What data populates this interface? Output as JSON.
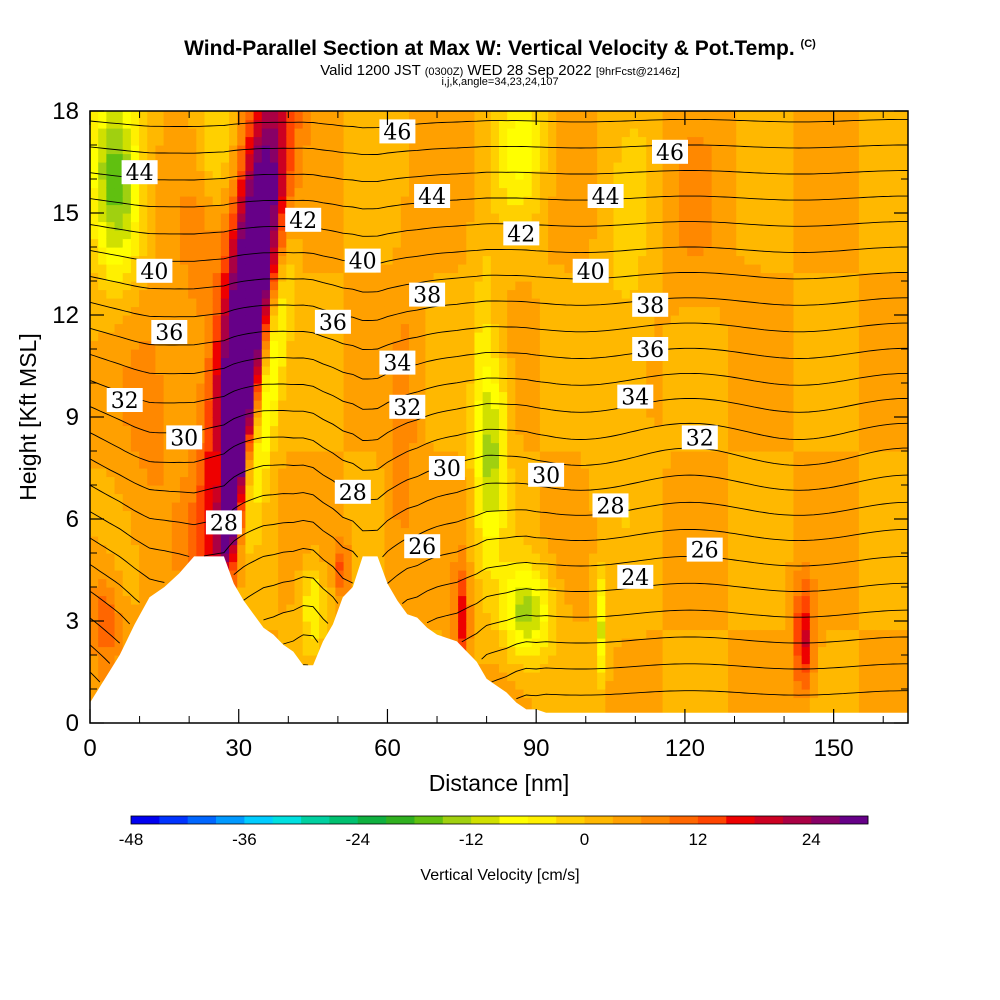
{
  "title": {
    "main": "Wind-Parallel Section at Max W: Vertical Velocity & Pot.Temp.",
    "copyright": "(C)",
    "valid": "Valid 1200 JST",
    "valid_z": "(0300Z)",
    "date": "WED 28 Sep 2022",
    "forecast": "[9hrFcst@2146z]",
    "ijk": "i,j,k,angle=34,23,24,107"
  },
  "chart_data": {
    "type": "heatmap",
    "xlabel": "Distance [nm]",
    "ylabel": "Height [Kft MSL]",
    "xlim": [
      0,
      165
    ],
    "ylim": [
      0,
      18
    ],
    "x_ticks": [
      "0",
      "30",
      "60",
      "90",
      "120",
      "150"
    ],
    "y_ticks": [
      "0",
      "3",
      "6",
      "9",
      "12",
      "15",
      "18"
    ],
    "colorbar": {
      "label": "Vertical Velocity [cm/s]",
      "ticks": [
        "-48",
        "-36",
        "-24",
        "-12",
        "0",
        "12",
        "24"
      ],
      "range": [
        -48,
        30
      ],
      "step": 3,
      "colors": [
        "#0000f0",
        "#0033ff",
        "#0066ff",
        "#0099ff",
        "#00ccff",
        "#00e0e0",
        "#00d0a0",
        "#00c070",
        "#10b040",
        "#30b020",
        "#60c010",
        "#a0d010",
        "#d0e000",
        "#ffff00",
        "#fff000",
        "#ffd000",
        "#ffb800",
        "#ffa000",
        "#ff8800",
        "#ff6600",
        "#ff4400",
        "#ee0000",
        "#cc0022",
        "#aa0044",
        "#880066",
        "#660088"
      ]
    },
    "theta_contour_labels": [
      {
        "value": "46",
        "x": 62,
        "y": 17.4
      },
      {
        "value": "46",
        "x": 117,
        "y": 16.8
      },
      {
        "value": "44",
        "x": 10,
        "y": 16.2
      },
      {
        "value": "44",
        "x": 69,
        "y": 15.5
      },
      {
        "value": "44",
        "x": 104,
        "y": 15.5
      },
      {
        "value": "42",
        "x": 43,
        "y": 14.8
      },
      {
        "value": "42",
        "x": 87,
        "y": 14.4
      },
      {
        "value": "40",
        "x": 13,
        "y": 13.3
      },
      {
        "value": "40",
        "x": 55,
        "y": 13.6
      },
      {
        "value": "40",
        "x": 101,
        "y": 13.3
      },
      {
        "value": "38",
        "x": 68,
        "y": 12.6
      },
      {
        "value": "38",
        "x": 113,
        "y": 12.3
      },
      {
        "value": "36",
        "x": 16,
        "y": 11.5
      },
      {
        "value": "36",
        "x": 49,
        "y": 11.8
      },
      {
        "value": "36",
        "x": 113,
        "y": 11.0
      },
      {
        "value": "34",
        "x": 62,
        "y": 10.6
      },
      {
        "value": "34",
        "x": 110,
        "y": 9.6
      },
      {
        "value": "32",
        "x": 7,
        "y": 9.5
      },
      {
        "value": "32",
        "x": 64,
        "y": 9.3
      },
      {
        "value": "32",
        "x": 123,
        "y": 8.4
      },
      {
        "value": "30",
        "x": 19,
        "y": 8.4
      },
      {
        "value": "30",
        "x": 72,
        "y": 7.5
      },
      {
        "value": "30",
        "x": 92,
        "y": 7.3
      },
      {
        "value": "28",
        "x": 53,
        "y": 6.8
      },
      {
        "value": "28",
        "x": 105,
        "y": 6.4
      },
      {
        "value": "28",
        "x": 27,
        "y": 5.9
      },
      {
        "value": "26",
        "x": 67,
        "y": 5.2
      },
      {
        "value": "26",
        "x": 124,
        "y": 5.1
      },
      {
        "value": "24",
        "x": 110,
        "y": 4.3
      }
    ],
    "theta_levels": [
      23,
      24,
      25,
      26,
      27,
      28,
      29,
      30,
      31,
      32,
      33,
      34,
      35,
      36,
      37,
      38,
      39,
      40,
      41,
      42,
      43,
      44,
      45,
      46,
      47
    ],
    "terrain_profile_kft": [
      [
        0,
        0.6
      ],
      [
        3,
        1.3
      ],
      [
        6,
        2.0
      ],
      [
        9,
        2.9
      ],
      [
        12,
        3.7
      ],
      [
        15,
        4.0
      ],
      [
        18,
        4.4
      ],
      [
        21,
        4.9
      ],
      [
        24,
        4.9
      ],
      [
        27,
        4.9
      ],
      [
        29,
        4.1
      ],
      [
        31,
        3.6
      ],
      [
        33,
        3.2
      ],
      [
        35,
        2.8
      ],
      [
        37,
        2.6
      ],
      [
        39,
        2.3
      ],
      [
        41,
        2.1
      ],
      [
        43,
        1.7
      ],
      [
        45,
        1.7
      ],
      [
        47,
        2.4
      ],
      [
        49,
        2.9
      ],
      [
        51,
        3.7
      ],
      [
        53,
        4.0
      ],
      [
        55,
        4.9
      ],
      [
        58,
        4.9
      ],
      [
        60,
        4.1
      ],
      [
        62,
        3.6
      ],
      [
        64,
        3.2
      ],
      [
        66,
        3.1
      ],
      [
        68,
        2.8
      ],
      [
        70,
        2.6
      ],
      [
        72,
        2.5
      ],
      [
        74,
        2.4
      ],
      [
        76,
        2.1
      ],
      [
        78,
        1.8
      ],
      [
        80,
        1.3
      ],
      [
        82,
        1.1
      ],
      [
        84,
        0.9
      ],
      [
        86,
        0.6
      ],
      [
        88,
        0.4
      ],
      [
        90,
        0.4
      ],
      [
        92,
        0.3
      ],
      [
        165,
        0.3
      ]
    ],
    "w_features": [
      {
        "x": 30,
        "y": 10,
        "w": 26,
        "xs": 5,
        "ys": 6,
        "tilt": 0.9
      },
      {
        "x": 34,
        "y": 15,
        "w": 22,
        "xs": 5,
        "ys": 5,
        "tilt": 0.8
      },
      {
        "x": 29,
        "y": 7,
        "w": 30,
        "xs": 2.5,
        "ys": 2.2,
        "tilt": 0.5
      },
      {
        "x": 36,
        "y": 10,
        "w": -20,
        "xs": 2.5,
        "ys": 4,
        "tilt": 0.9
      },
      {
        "x": 31,
        "y": 7,
        "w": -14,
        "xs": 1.5,
        "ys": 1.5,
        "tilt": 0.6
      },
      {
        "x": 26,
        "y": 7.5,
        "w": -10,
        "xs": 1.5,
        "ys": 1.5,
        "tilt": 0.5
      },
      {
        "x": 5,
        "y": 16,
        "w": -18,
        "xs": 5,
        "ys": 3,
        "tilt": -0.2
      },
      {
        "x": 25,
        "y": 17,
        "w": -8,
        "xs": 4,
        "ys": 2,
        "tilt": 0
      },
      {
        "x": 81,
        "y": 8,
        "w": -16,
        "xs": 3,
        "ys": 3,
        "tilt": 0.2
      },
      {
        "x": 79,
        "y": 11,
        "w": -6,
        "xs": 2,
        "ys": 3,
        "tilt": 0.2
      },
      {
        "x": 87,
        "y": 17,
        "w": -10,
        "xs": 5,
        "ys": 2,
        "tilt": 0
      },
      {
        "x": 108,
        "y": 12,
        "w": -4,
        "xs": 5,
        "ys": 6,
        "tilt": 0.3
      },
      {
        "x": 45,
        "y": 3.5,
        "w": -10,
        "xs": 2.5,
        "ys": 1.3,
        "tilt": 0
      },
      {
        "x": 88,
        "y": 3.3,
        "w": -16,
        "xs": 5,
        "ys": 1.4,
        "tilt": 0
      },
      {
        "x": 103,
        "y": 2.8,
        "w": -12,
        "xs": 1.2,
        "ys": 1.5,
        "tilt": 0
      },
      {
        "x": 75,
        "y": 3,
        "w": 14,
        "xs": 1.5,
        "ys": 1.6,
        "tilt": 0
      },
      {
        "x": 144,
        "y": 2.5,
        "w": 16,
        "xs": 2,
        "ys": 1.6,
        "tilt": 0
      },
      {
        "x": 51,
        "y": 4.5,
        "w": 12,
        "xs": 1.2,
        "ys": 0.8,
        "tilt": 0
      },
      {
        "x": 3,
        "y": 3,
        "w": 8,
        "xs": 3,
        "ys": 1.5,
        "tilt": 0
      },
      {
        "x": 22,
        "y": 14,
        "w": 4,
        "xs": 4,
        "ys": 4,
        "tilt": 0.5
      },
      {
        "x": 12,
        "y": 9,
        "w": 4,
        "xs": 6,
        "ys": 4,
        "tilt": 0.3
      },
      {
        "x": 122,
        "y": 15,
        "w": 3,
        "xs": 6,
        "ys": 3,
        "tilt": 0
      },
      {
        "x": 63,
        "y": 8,
        "w": 5,
        "xs": 3,
        "ys": 5,
        "tilt": 0.3
      }
    ]
  }
}
